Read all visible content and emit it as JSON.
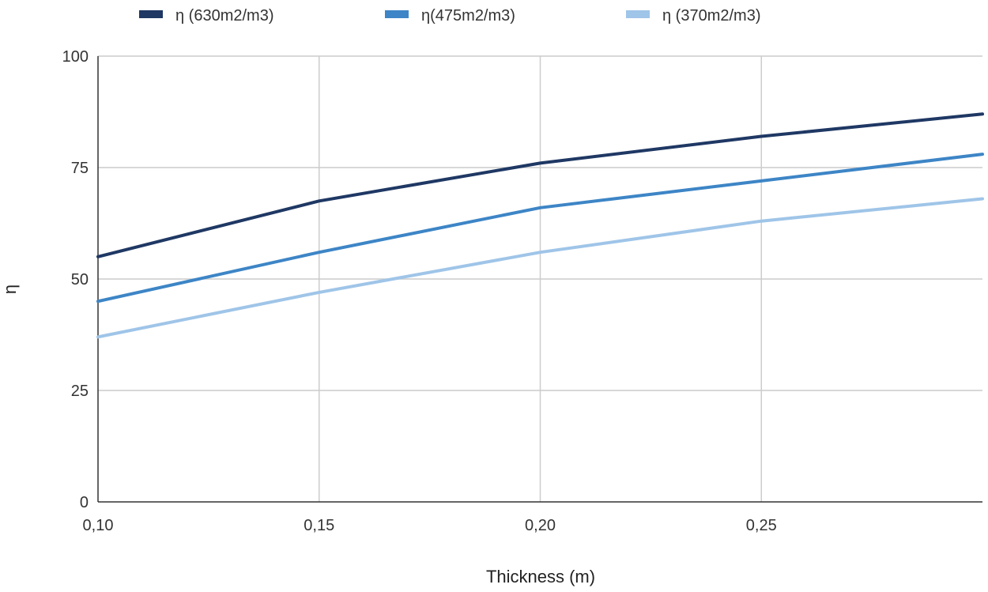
{
  "chart_data": {
    "type": "line",
    "xlabel": "Thickness (m)",
    "ylabel": "η",
    "x": [
      0.1,
      0.15,
      0.2,
      0.25,
      0.3
    ],
    "xlim": [
      0.1,
      0.3
    ],
    "ylim": [
      0,
      100
    ],
    "x_ticks": [
      {
        "value": 0.1,
        "label": "0,10"
      },
      {
        "value": 0.15,
        "label": "0,15"
      },
      {
        "value": 0.2,
        "label": "0,20"
      },
      {
        "value": 0.25,
        "label": "0,25"
      }
    ],
    "y_ticks": [
      {
        "value": 0,
        "label": "0"
      },
      {
        "value": 25,
        "label": "25"
      },
      {
        "value": 50,
        "label": "50"
      },
      {
        "value": 75,
        "label": "75"
      },
      {
        "value": 100,
        "label": "100"
      }
    ],
    "grid": true,
    "legend_position": "top",
    "series": [
      {
        "name": "η (630m2/m3)",
        "color": "#1f3864",
        "values": [
          55,
          67.5,
          76,
          82,
          87
        ]
      },
      {
        "name": "η(475m2/m3)",
        "color": "#3d85c6",
        "values": [
          45,
          56,
          66,
          72,
          78
        ]
      },
      {
        "name": "η (370m2/m3)",
        "color": "#9fc5e8",
        "values": [
          37,
          47,
          56,
          63,
          68
        ]
      }
    ]
  }
}
